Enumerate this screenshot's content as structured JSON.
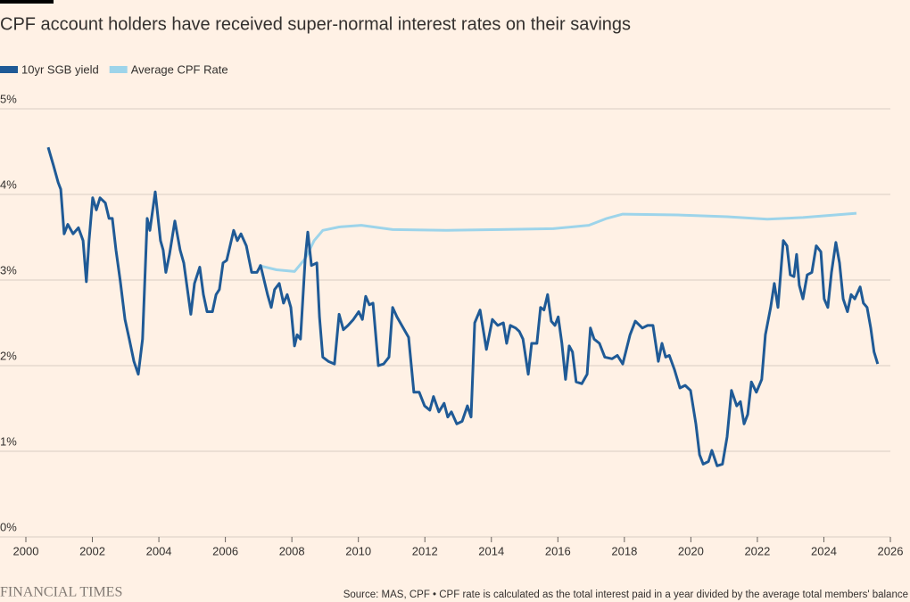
{
  "chart_data": {
    "type": "line",
    "title": "CPF account holders have received super-normal interest rates on their savings",
    "source": "Source: MAS, CPF • CPF rate is calculated as the total interest paid in a year divided by the average total members' balance",
    "brand": "FINANCIAL TIMES",
    "xlim": [
      2000,
      2026
    ],
    "xticks": [
      2000,
      2002,
      2004,
      2006,
      2008,
      2010,
      2012,
      2014,
      2016,
      2018,
      2020,
      2022,
      2024,
      2026
    ],
    "ylim": [
      0,
      5
    ],
    "yticks": [
      {
        "value": 0,
        "label": "0%"
      },
      {
        "value": 1,
        "label": "1%"
      },
      {
        "value": 2,
        "label": "2%"
      },
      {
        "value": 3,
        "label": "3%"
      },
      {
        "value": 4,
        "label": "4%"
      },
      {
        "value": 5,
        "label": "5%"
      }
    ],
    "grid": true,
    "legend": "top-left",
    "series": [
      {
        "name": "10yr SGB yield",
        "color": "#1f5a96",
        "x": [
          2000.67,
          2000.83,
          2000.97,
          2001.05,
          2001.15,
          2001.26,
          2001.42,
          2001.58,
          2001.72,
          2001.82,
          2001.9,
          2002.01,
          2002.12,
          2002.23,
          2002.39,
          2002.5,
          2002.6,
          2002.71,
          2002.84,
          2002.98,
          2003.11,
          2003.25,
          2003.38,
          2003.51,
          2003.65,
          2003.73,
          2003.89,
          2004.05,
          2004.13,
          2004.21,
          2004.32,
          2004.48,
          2004.64,
          2004.75,
          2004.96,
          2005.07,
          2005.23,
          2005.34,
          2005.45,
          2005.61,
          2005.72,
          2005.82,
          2005.93,
          2006.04,
          2006.25,
          2006.36,
          2006.47,
          2006.63,
          2006.79,
          2006.95,
          2007.06,
          2007.27,
          2007.38,
          2007.48,
          2007.62,
          2007.75,
          2007.86,
          2007.97,
          2008.08,
          2008.16,
          2008.26,
          2008.4,
          2008.48,
          2008.59,
          2008.75,
          2008.83,
          2008.93,
          2009.1,
          2009.28,
          2009.42,
          2009.55,
          2009.69,
          2009.85,
          2010.01,
          2010.12,
          2010.22,
          2010.33,
          2010.44,
          2010.6,
          2010.76,
          2010.92,
          2011.03,
          2011.16,
          2011.35,
          2011.51,
          2011.67,
          2011.83,
          2011.99,
          2012.15,
          2012.26,
          2012.42,
          2012.58,
          2012.69,
          2012.8,
          2012.96,
          2013.12,
          2013.28,
          2013.39,
          2013.5,
          2013.66,
          2013.85,
          2014.03,
          2014.19,
          2014.36,
          2014.46,
          2014.57,
          2014.73,
          2014.84,
          2014.95,
          2015.11,
          2015.21,
          2015.37,
          2015.48,
          2015.58,
          2015.69,
          2015.8,
          2015.91,
          2016.01,
          2016.12,
          2016.23,
          2016.34,
          2016.44,
          2016.55,
          2016.72,
          2016.88,
          2016.98,
          2017.09,
          2017.25,
          2017.41,
          2017.63,
          2017.79,
          2017.95,
          2018.06,
          2018.17,
          2018.33,
          2018.54,
          2018.7,
          2018.86,
          2019.02,
          2019.13,
          2019.24,
          2019.35,
          2019.51,
          2019.67,
          2019.83,
          2019.99,
          2020.15,
          2020.26,
          2020.37,
          2020.53,
          2020.63,
          2020.79,
          2020.95,
          2021.09,
          2021.22,
          2021.38,
          2021.49,
          2021.6,
          2021.71,
          2021.82,
          2021.97,
          2022.13,
          2022.24,
          2022.4,
          2022.51,
          2022.62,
          2022.78,
          2022.89,
          2022.99,
          2023.1,
          2023.18,
          2023.26,
          2023.37,
          2023.5,
          2023.64,
          2023.77,
          2023.91,
          2024.01,
          2024.12,
          2024.23,
          2024.36,
          2024.47,
          2024.58,
          2024.71,
          2024.82,
          2024.93,
          2025.09,
          2025.19,
          2025.3,
          2025.41,
          2025.51,
          2025.62
        ],
        "values": [
          4.55,
          4.34,
          4.14,
          4.06,
          3.54,
          3.65,
          3.54,
          3.61,
          3.46,
          2.98,
          3.46,
          3.96,
          3.82,
          3.96,
          3.9,
          3.72,
          3.72,
          3.35,
          2.99,
          2.54,
          2.31,
          2.05,
          1.9,
          2.31,
          3.72,
          3.58,
          4.03,
          3.46,
          3.35,
          3.09,
          3.3,
          3.69,
          3.35,
          3.2,
          2.6,
          2.96,
          3.15,
          2.83,
          2.63,
          2.63,
          2.83,
          2.89,
          3.2,
          3.23,
          3.58,
          3.46,
          3.54,
          3.4,
          3.09,
          3.09,
          3.17,
          2.83,
          2.68,
          2.89,
          2.96,
          2.73,
          2.83,
          2.68,
          2.23,
          2.36,
          2.31,
          3.25,
          3.56,
          3.17,
          3.2,
          2.57,
          2.1,
          2.05,
          2.02,
          2.6,
          2.42,
          2.47,
          2.54,
          2.63,
          2.54,
          2.81,
          2.71,
          2.73,
          2.0,
          2.02,
          2.1,
          2.68,
          2.57,
          2.44,
          2.33,
          1.69,
          1.69,
          1.53,
          1.48,
          1.64,
          1.46,
          1.56,
          1.4,
          1.46,
          1.32,
          1.35,
          1.53,
          1.4,
          2.5,
          2.65,
          2.19,
          2.54,
          2.47,
          2.5,
          2.26,
          2.47,
          2.44,
          2.4,
          2.31,
          1.9,
          2.26,
          2.26,
          2.68,
          2.65,
          2.83,
          2.52,
          2.47,
          2.57,
          2.26,
          1.84,
          2.23,
          2.16,
          1.81,
          1.79,
          1.9,
          2.44,
          2.31,
          2.26,
          2.1,
          2.08,
          2.12,
          2.02,
          2.19,
          2.36,
          2.52,
          2.44,
          2.47,
          2.47,
          2.05,
          2.26,
          2.1,
          2.12,
          1.95,
          1.74,
          1.77,
          1.71,
          1.32,
          0.96,
          0.85,
          0.88,
          1.01,
          0.83,
          0.85,
          1.17,
          1.71,
          1.53,
          1.58,
          1.32,
          1.43,
          1.81,
          1.69,
          1.84,
          2.36,
          2.68,
          2.96,
          2.68,
          3.46,
          3.4,
          3.06,
          3.04,
          3.3,
          2.94,
          2.78,
          3.06,
          3.09,
          3.4,
          3.33,
          2.78,
          2.68,
          3.09,
          3.44,
          3.2,
          2.78,
          2.63,
          2.83,
          2.78,
          2.92,
          2.73,
          2.68,
          2.44,
          2.16,
          2.02
        ]
      },
      {
        "name": "Average CPF Rate",
        "color": "#9dd4ea",
        "x": [
          2007.0,
          2007.54,
          2008.08,
          2008.4,
          2008.67,
          2008.93,
          2009.42,
          2010.09,
          2011.03,
          2012.64,
          2014.25,
          2015.86,
          2016.93,
          2017.47,
          2017.95,
          2019.61,
          2021.09,
          2022.3,
          2023.37,
          2024.98
        ],
        "values": [
          3.17,
          3.12,
          3.1,
          3.25,
          3.46,
          3.58,
          3.62,
          3.64,
          3.59,
          3.58,
          3.59,
          3.6,
          3.64,
          3.72,
          3.77,
          3.76,
          3.74,
          3.71,
          3.73,
          3.78
        ]
      }
    ]
  }
}
